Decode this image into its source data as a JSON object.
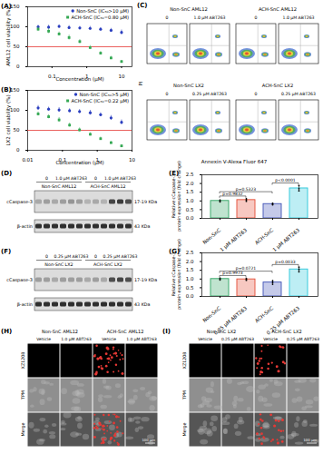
{
  "chart_data": [
    {
      "panel": "(A)",
      "type": "scatter",
      "xlabel": "Concentration (μM)",
      "ylabel": "AML12 cell viability (%)",
      "log": "x",
      "xlim": [
        0.02,
        20
      ],
      "xticks": [
        0.1,
        1,
        10
      ],
      "ylim": [
        0,
        150
      ],
      "yticks": [
        0,
        50,
        100,
        150
      ],
      "legend": "top-right",
      "x": [
        0.04,
        0.08,
        0.16,
        0.31,
        0.63,
        1.25,
        2.5,
        5,
        10
      ],
      "series": [
        {
          "name": "Non-SnC (IC₅₀>10 μM)",
          "color": "#2b3fbf",
          "marker": "circle",
          "values": [
            100,
            99,
            101,
            98,
            97,
            96,
            94,
            91,
            86
          ],
          "errors": [
            4,
            5,
            4,
            5,
            4,
            5,
            4,
            5,
            6
          ]
        },
        {
          "name": "ACH-SnC (IC₅₀=0.80 μM)",
          "color": "#34a853",
          "marker": "square",
          "values": [
            94,
            89,
            82,
            73,
            63,
            48,
            34,
            22,
            13
          ],
          "errors": [
            5,
            6,
            5,
            6,
            5,
            5,
            4,
            4,
            3
          ]
        }
      ],
      "threshold": {
        "value": 50,
        "color": "#e53935"
      }
    },
    {
      "panel": "(B)",
      "type": "scatter",
      "xlabel": "Concentration (μM)",
      "ylabel": "LX2 cell viability (%)",
      "log": "x",
      "xlim": [
        0.01,
        10
      ],
      "xticks": [
        0.01,
        0.1,
        1,
        10
      ],
      "ylim": [
        0,
        150
      ],
      "yticks": [
        0,
        50,
        100,
        150
      ],
      "legend": "top-right",
      "x": [
        0.02,
        0.04,
        0.08,
        0.16,
        0.31,
        0.63,
        1.25,
        2.5,
        5
      ],
      "series": [
        {
          "name": "Non-SnC (IC₅₀>5 μM)",
          "color": "#2b3fbf",
          "marker": "circle",
          "values": [
            106,
            103,
            101,
            99,
            97,
            94,
            89,
            81,
            70
          ],
          "errors": [
            6,
            5,
            6,
            5,
            5,
            6,
            5,
            6,
            6
          ]
        },
        {
          "name": "ACH-SnC (IC₅₀=0.22 μM)",
          "color": "#34a853",
          "marker": "square",
          "values": [
            91,
            84,
            76,
            63,
            51,
            40,
            29,
            19,
            11
          ],
          "errors": [
            5,
            5,
            6,
            5,
            5,
            4,
            4,
            3,
            3
          ]
        }
      ],
      "threshold": {
        "value": 50,
        "color": "#e53935"
      }
    },
    {
      "panel": "(E)",
      "type": "bar",
      "ylabel": [
        "Relative cCaspase-3",
        "protein expression (fold change)"
      ],
      "categories": [
        "Non-SnC",
        "1 μM ABT263",
        "ACH-SnC",
        "1 μM ABT263"
      ],
      "values": [
        1.0,
        1.05,
        0.82,
        1.72
      ],
      "errors": [
        0.06,
        0.08,
        0.05,
        0.15
      ],
      "points": [
        [
          0.95,
          1.0,
          1.05
        ],
        [
          0.98,
          1.05,
          1.12
        ],
        [
          0.78,
          0.82,
          0.86
        ],
        [
          1.58,
          1.7,
          1.88
        ]
      ],
      "colors": [
        "#2ca25f",
        "#e34a33",
        "#3f51b5",
        "#26c6da"
      ],
      "ylim": [
        0,
        2.5
      ],
      "yticks": [
        {
          "value": 0,
          "label": "0.0"
        },
        {
          "value": 0.5,
          "label": "0.5"
        },
        {
          "value": 1,
          "label": "1.0"
        },
        {
          "value": 1.5,
          "label": "1.5"
        },
        {
          "value": 2,
          "label": "2.0"
        },
        {
          "value": 2.5,
          "label": "2.5"
        }
      ],
      "annotations": [
        {
          "pair": [
            0,
            1
          ],
          "label": "p=0.9832"
        },
        {
          "pair": [
            0,
            2
          ],
          "label": "p=0.5323"
        },
        {
          "pair": [
            2,
            3
          ],
          "label": "p<0.0001"
        }
      ]
    },
    {
      "panel": "(G)",
      "type": "bar",
      "ylabel": [
        "Relative cCaspase-3",
        "protein expression (fold change)"
      ],
      "categories": [
        "Non-SnC",
        "0.25 μM ABT263",
        "ACH-SnC",
        "0.25 μM ABT263"
      ],
      "values": [
        1.0,
        0.98,
        0.8,
        1.55
      ],
      "errors": [
        0.05,
        0.06,
        0.1,
        0.12
      ],
      "points": [
        [
          0.95,
          1.0,
          1.05
        ],
        [
          0.93,
          0.98,
          1.04
        ],
        [
          0.7,
          0.8,
          0.9
        ],
        [
          1.42,
          1.55,
          1.68
        ]
      ],
      "colors": [
        "#2ca25f",
        "#e34a33",
        "#3f51b5",
        "#26c6da"
      ],
      "ylim": [
        0,
        2.5
      ],
      "yticks": [
        {
          "value": 0,
          "label": "0.0"
        },
        {
          "value": 0.5,
          "label": "0.5"
        },
        {
          "value": 1,
          "label": "1.0"
        },
        {
          "value": 1.5,
          "label": "1.5"
        },
        {
          "value": 2,
          "label": "2.0"
        },
        {
          "value": 2.5,
          "label": "2.5"
        }
      ],
      "annotations": [
        {
          "pair": [
            0,
            1
          ],
          "label": "p=0.9973"
        },
        {
          "pair": [
            0,
            2
          ],
          "label": "p=0.0721"
        },
        {
          "pair": [
            2,
            3
          ],
          "label": "p=0.0033"
        }
      ]
    }
  ],
  "flow_cytometry": {
    "panel": "(C)",
    "xlabel": "Annexin V-Alexa Fluor 647",
    "ylabel": "PI",
    "groups": [
      {
        "title": "Non-SnC AML12",
        "conditions": [
          "0",
          "1.0 μM ABT263"
        ]
      },
      {
        "title": "ACH-SnC AML12",
        "conditions": [
          "0",
          "1.0 μM ABT263"
        ]
      },
      {
        "title": "Non-SnC LX2",
        "conditions": [
          "0",
          "0.25 μM ABT263"
        ]
      },
      {
        "title": "ACH-SnC LX2",
        "conditions": [
          "0",
          "0.25 μM ABT263"
        ]
      }
    ]
  },
  "western_blots": [
    {
      "panel": "(D)",
      "dose_labels": [
        "0",
        "1.0 μM ABT263",
        "0",
        "1.0 μM ABT263"
      ],
      "groups": [
        "Non-SnC AML12",
        "ACH-SnC AML12"
      ],
      "bands": [
        {
          "name": "cCaspase-3",
          "size": "17-19 KDa",
          "intensity": [
            0.25,
            0.3,
            0.25,
            0.3,
            0.35,
            0.3,
            0.2,
            0.25,
            0.2,
            0.75,
            0.8,
            0.7
          ]
        },
        {
          "name": "β-actin",
          "size": "43 KDa",
          "intensity": [
            0.85,
            0.85,
            0.85,
            0.85,
            0.85,
            0.85,
            0.85,
            0.85,
            0.85,
            0.85,
            0.85,
            0.85
          ]
        }
      ]
    },
    {
      "panel": "(F)",
      "dose_labels": [
        "0",
        "0.25 μM ABT263",
        "0",
        "0.25 μM ABT263"
      ],
      "groups": [
        "Non-SnC LX2",
        "ACH-SnC LX2"
      ],
      "bands": [
        {
          "name": "cCaspase-3",
          "size": "17-19 KDa",
          "intensity": [
            0.3,
            0.3,
            0.25,
            0.3,
            0.3,
            0.3,
            0.25,
            0.3,
            0.25,
            0.7,
            0.75,
            0.7
          ]
        },
        {
          "name": "β-actin",
          "size": "43 KDa",
          "intensity": [
            0.85,
            0.85,
            0.85,
            0.85,
            0.85,
            0.85,
            0.85,
            0.85,
            0.85,
            0.85,
            0.85,
            0.85
          ]
        }
      ]
    }
  ],
  "microscopy": [
    {
      "panel": "(H)",
      "groups": [
        "Non-SnC AML12",
        "ACH-SnC AML12"
      ],
      "conditions": [
        "Vehicle",
        "1.0 μM ABT263",
        "Vehicle",
        "1.0 μM ABT263"
      ],
      "rows": [
        "XZ1208",
        "TPM",
        "Merge"
      ],
      "signal": [
        0,
        0,
        1,
        0
      ],
      "scale_bar": "100 μm"
    },
    {
      "panel": "(I)",
      "groups": [
        "Non-SnC LX2",
        "ACH-SnC LX2"
      ],
      "conditions": [
        "Vehicle",
        "0.25 μM ABT263",
        "Vehicle",
        "0.25 μM ABT263"
      ],
      "rows": [
        "XZ1208",
        "TPM",
        "Merge"
      ],
      "signal": [
        0,
        0,
        0.6,
        0
      ],
      "scale_bar": "100 μm"
    }
  ]
}
